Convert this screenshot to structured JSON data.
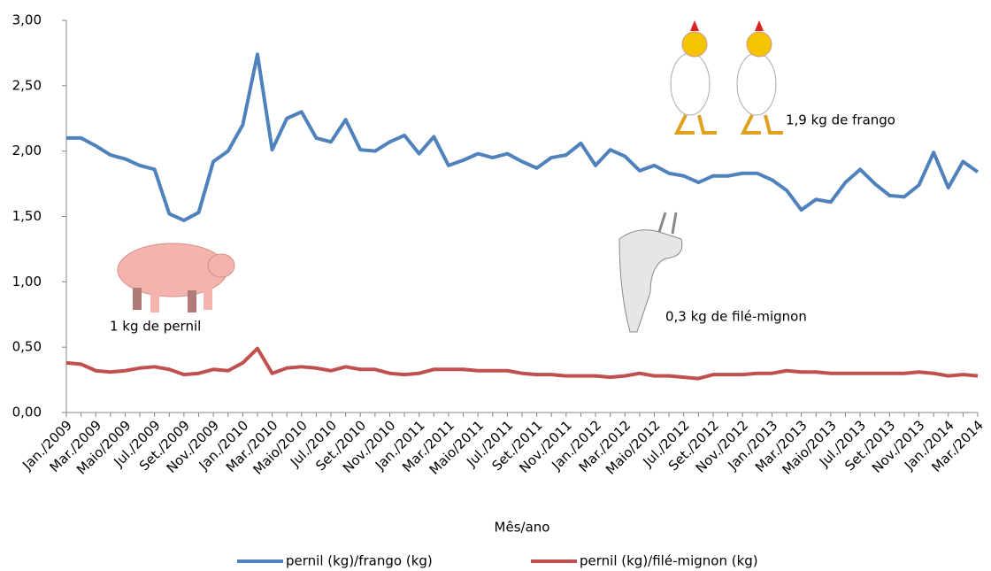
{
  "chart_data": {
    "type": "line",
    "x_label": "Mês/ano",
    "annotations": [
      "1,9 kg de frango",
      "0,3 kg de filé-mignon",
      "1 kg de pernil"
    ],
    "categories": [
      "Jan./2009",
      null,
      "Mar./2009",
      null,
      "Maio/2009",
      null,
      "Jul./2009",
      null,
      "Set./2009",
      null,
      "Nov./2009",
      null,
      "Jan./2010",
      null,
      "Mar./2010",
      null,
      "Maio/2010",
      null,
      "Jul./2010",
      null,
      "Set./2010",
      null,
      "Nov./2010",
      null,
      "Jan./2011",
      null,
      "Mar./2011",
      null,
      "Maio/2011",
      null,
      "Jul./2011",
      null,
      "Set./2011",
      null,
      "Nov./2011",
      null,
      "Jan./2012",
      null,
      "Mar./2012",
      null,
      "Maio/2012",
      null,
      "Jul./2012",
      null,
      "Set./2012",
      null,
      "Nov./2012",
      null,
      "Jan./2013",
      null,
      "Mar./2013",
      null,
      "Maio/2013",
      null,
      "Jul./2013",
      null,
      "Set./2013",
      null,
      "Nov./2013",
      null,
      "Jan./2014",
      null,
      "Mar./2014"
    ],
    "series": [
      {
        "name": "pernil (kg)/frango (kg)",
        "color": "#4f81bd",
        "values": [
          2.1,
          2.1,
          2.04,
          1.97,
          1.94,
          1.89,
          1.86,
          1.52,
          1.47,
          1.53,
          1.92,
          2.0,
          2.2,
          2.74,
          2.01,
          2.25,
          2.3,
          2.1,
          2.07,
          2.24,
          2.01,
          2.0,
          2.07,
          2.12,
          1.98,
          2.11,
          1.89,
          1.93,
          1.98,
          1.95,
          1.98,
          1.92,
          1.87,
          1.95,
          1.97,
          2.06,
          1.89,
          2.01,
          1.96,
          1.85,
          1.89,
          1.83,
          1.81,
          1.76,
          1.81,
          1.81,
          1.83,
          1.83,
          1.78,
          1.7,
          1.55,
          1.63,
          1.61,
          1.76,
          1.86,
          1.75,
          1.66,
          1.65,
          1.74,
          1.99,
          1.72,
          1.92,
          1.84
        ]
      },
      {
        "name": "pernil (kg)/filé-mignon (kg)",
        "color": "#c0504d",
        "values": [
          0.38,
          0.37,
          0.32,
          0.31,
          0.32,
          0.34,
          0.35,
          0.33,
          0.29,
          0.3,
          0.33,
          0.32,
          0.38,
          0.49,
          0.3,
          0.34,
          0.35,
          0.34,
          0.32,
          0.35,
          0.33,
          0.33,
          0.3,
          0.29,
          0.3,
          0.33,
          0.33,
          0.33,
          0.32,
          0.32,
          0.32,
          0.3,
          0.29,
          0.29,
          0.28,
          0.28,
          0.28,
          0.27,
          0.28,
          0.3,
          0.28,
          0.28,
          0.27,
          0.26,
          0.29,
          0.29,
          0.29,
          0.3,
          0.3,
          0.32,
          0.31,
          0.31,
          0.3,
          0.3,
          0.3,
          0.3,
          0.3,
          0.3,
          0.31,
          0.3,
          0.28,
          0.29,
          0.28
        ]
      }
    ],
    "ylim": [
      0,
      3
    ],
    "yticks": [
      {
        "value": 0,
        "label": "0,00"
      },
      {
        "value": 0.5,
        "label": "0,50"
      },
      {
        "value": 1,
        "label": "1,00"
      },
      {
        "value": 1.5,
        "label": "1,50"
      },
      {
        "value": 2,
        "label": "2,00"
      },
      {
        "value": 2.5,
        "label": "2,50"
      },
      {
        "value": 3,
        "label": "3,00"
      }
    ],
    "legend": "bottom"
  }
}
